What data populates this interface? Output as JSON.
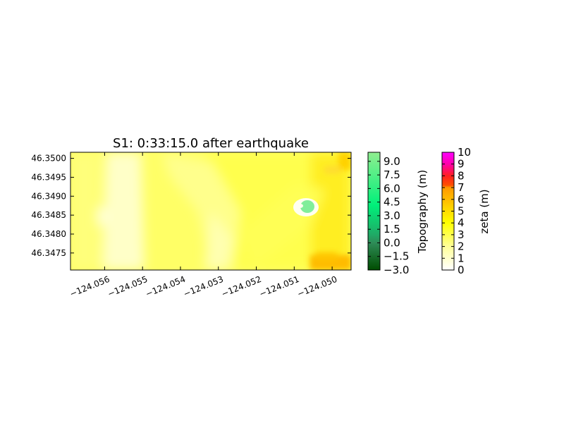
{
  "chart_data": {
    "type": "heatmap",
    "title": "S1: 0:33:15.0 after earthquake",
    "x_ticks": [
      "−124.056",
      "−124.055",
      "−124.054",
      "−124.053",
      "−124.052",
      "−124.051",
      "−124.050"
    ],
    "x_tick_values": [
      -124.056,
      -124.055,
      -124.054,
      -124.053,
      -124.052,
      -124.051,
      -124.05
    ],
    "xlim": [
      -124.0569,
      -124.0495
    ],
    "y_ticks": [
      "46.3475",
      "46.3480",
      "46.3485",
      "46.3490",
      "46.3495",
      "46.3500"
    ],
    "y_tick_values": [
      46.3475,
      46.348,
      46.3485,
      46.349,
      46.3495,
      46.35
    ],
    "ylim": [
      46.34705,
      46.35016
    ],
    "grid": false,
    "colorbars": [
      {
        "label": "Topography (m)",
        "ticks": [
          "−3.0",
          "−1.5",
          "0.0",
          "1.5",
          "3.0",
          "4.5",
          "6.0",
          "7.5",
          "9.0"
        ],
        "tick_values": [
          -3.0,
          -1.5,
          0.0,
          1.5,
          3.0,
          4.5,
          6.0,
          7.5,
          9.0
        ],
        "range": [
          -3.0,
          10.0
        ],
        "colors": [
          "#004d00",
          "#2e8b57",
          "#00f07a",
          "#90ee90"
        ]
      },
      {
        "label": "zeta (m)",
        "ticks": [
          "0",
          "1",
          "2",
          "3",
          "4",
          "5",
          "6",
          "7",
          "8",
          "9",
          "10"
        ],
        "tick_values": [
          0,
          1,
          2,
          3,
          4,
          5,
          6,
          7,
          8,
          9,
          10
        ],
        "range": [
          0,
          10
        ],
        "colors": [
          "#ffffff",
          "#ffff99",
          "#ffff00",
          "#ffcc00",
          "#ff9900",
          "#ff2020",
          "#ff00cc",
          "#ff00ff"
        ]
      }
    ],
    "features": [
      {
        "kind": "dry-land",
        "lon": -124.05078,
        "lat": 46.3486,
        "value_m": 8.5
      },
      {
        "kind": "deeper-flow",
        "lon": -124.05035,
        "lat": 46.34735,
        "value_m": 5.5
      }
    ]
  }
}
